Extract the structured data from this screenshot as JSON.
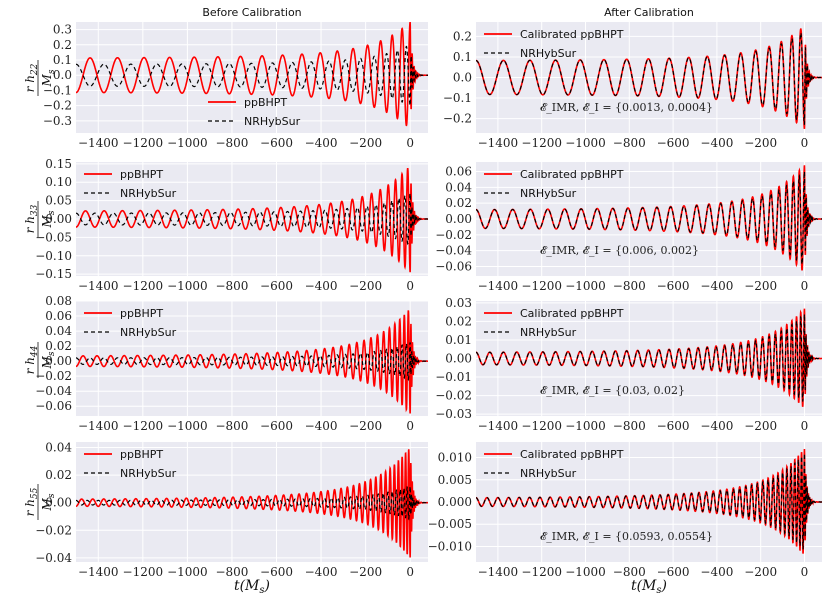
{
  "figure": {
    "column_titles": [
      "Before Calibration",
      "After Calibration"
    ],
    "xlabel": "t(M_s)"
  },
  "chart_data": [
    {
      "type": "line",
      "panel": "h22-before",
      "title": "Before Calibration",
      "ylabel": "r h_22 / M_s",
      "xlim": [
        -1500,
        80
      ],
      "ylim": [
        -0.38,
        0.35
      ],
      "xticks": [
        -1400,
        -1200,
        -1000,
        -800,
        -600,
        -400,
        -200,
        0
      ],
      "yticks": [
        -0.3,
        -0.2,
        -0.1,
        0.0,
        0.1,
        0.2,
        0.3
      ],
      "ytick_labels": [
        "−0.3",
        "−0.2",
        "−0.1",
        "0.0",
        "0.1",
        "0.2",
        "0.3"
      ],
      "grid": true,
      "legend": "lower-center",
      "series": [
        {
          "name": "ppBHPT",
          "color": "#ff0000",
          "style": "solid",
          "amplitude_start": 0.11,
          "amplitude_peak": 0.35,
          "cycles": 17.5,
          "phase": 3.14
        },
        {
          "name": "NRHybSur",
          "color": "#000000",
          "style": "dashed",
          "amplitude_start": 0.07,
          "amplitude_peak": 0.2,
          "cycles": 17.5,
          "phase": 0
        }
      ],
      "annotation": ""
    },
    {
      "type": "line",
      "panel": "h22-after",
      "title": "After Calibration",
      "xlim": [
        -1500,
        80
      ],
      "ylim": [
        -0.27,
        0.27
      ],
      "xticks": [
        -1400,
        -1200,
        -1000,
        -800,
        -600,
        -400,
        -200,
        0
      ],
      "yticks": [
        -0.2,
        -0.1,
        0.0,
        0.1,
        0.2
      ],
      "ytick_labels": [
        "−0.2",
        "−0.1",
        "0.0",
        "0.1",
        "0.2"
      ],
      "grid": true,
      "legend": "top-left",
      "series": [
        {
          "name": "Calibrated ppBHPT",
          "color": "#ff0000",
          "style": "solid",
          "amplitude_start": 0.08,
          "amplitude_peak": 0.25,
          "cycles": 17.5,
          "phase": 0
        },
        {
          "name": "NRHybSur",
          "color": "#000000",
          "style": "dashed",
          "amplitude_start": 0.08,
          "amplitude_peak": 0.23,
          "cycles": 17.5,
          "phase": 0
        }
      ],
      "annotation": "𝓔_IMR, 𝓔_I = {0.0013, 0.0004}"
    },
    {
      "type": "line",
      "panel": "h33-before",
      "ylabel": "r h_33 / M_s",
      "xlim": [
        -1500,
        80
      ],
      "ylim": [
        -0.155,
        0.155
      ],
      "xticks": [
        -1400,
        -1200,
        -1000,
        -800,
        -600,
        -400,
        -200,
        0
      ],
      "yticks": [
        -0.15,
        -0.1,
        -0.05,
        0.0,
        0.05,
        0.1,
        0.15
      ],
      "ytick_labels": [
        "−0.15",
        "−0.10",
        "−0.05",
        "0.00",
        "0.05",
        "0.10",
        "0.15"
      ],
      "grid": true,
      "legend": "top-left",
      "series": [
        {
          "name": "ppBHPT",
          "color": "#ff0000",
          "style": "solid",
          "amplitude_start": 0.02,
          "amplitude_peak": 0.145,
          "cycles": 26,
          "phase": 3.14
        },
        {
          "name": "NRHybSur",
          "color": "#000000",
          "style": "dashed",
          "amplitude_start": 0.015,
          "amplitude_peak": 0.07,
          "cycles": 26,
          "phase": 0
        }
      ],
      "annotation": ""
    },
    {
      "type": "line",
      "panel": "h33-after",
      "xlim": [
        -1500,
        80
      ],
      "ylim": [
        -0.072,
        0.072
      ],
      "xticks": [
        -1400,
        -1200,
        -1000,
        -800,
        -600,
        -400,
        -200,
        0
      ],
      "yticks": [
        -0.06,
        -0.04,
        -0.02,
        0.0,
        0.02,
        0.04,
        0.06
      ],
      "ytick_labels": [
        "−0.06",
        "−0.04",
        "−0.02",
        "0.00",
        "0.02",
        "0.04",
        "0.06"
      ],
      "grid": true,
      "legend": "top-left",
      "series": [
        {
          "name": "Calibrated ppBHPT",
          "color": "#ff0000",
          "style": "solid",
          "amplitude_start": 0.011,
          "amplitude_peak": 0.068,
          "cycles": 26,
          "phase": 0
        },
        {
          "name": "NRHybSur",
          "color": "#000000",
          "style": "dashed",
          "amplitude_start": 0.011,
          "amplitude_peak": 0.06,
          "cycles": 26,
          "phase": 0
        }
      ],
      "annotation": "𝓔_IMR, 𝓔_I = {0.006, 0.002}"
    },
    {
      "type": "line",
      "panel": "h44-before",
      "ylabel": "r h_44 / M_s",
      "xlim": [
        -1500,
        80
      ],
      "ylim": [
        -0.073,
        0.08
      ],
      "xticks": [
        -1400,
        -1200,
        -1000,
        -800,
        -600,
        -400,
        -200,
        0
      ],
      "yticks": [
        -0.06,
        -0.04,
        -0.02,
        0.0,
        0.02,
        0.04,
        0.06,
        0.08
      ],
      "ytick_labels": [
        "−0.06",
        "−0.04",
        "−0.02",
        "0.00",
        "0.02",
        "0.04",
        "0.06",
        "0.08"
      ],
      "grid": true,
      "legend": "top-left",
      "series": [
        {
          "name": "ppBHPT",
          "color": "#ff0000",
          "style": "solid",
          "amplitude_start": 0.006,
          "amplitude_peak": 0.07,
          "cycles": 35,
          "phase": 3.14
        },
        {
          "name": "NRHybSur",
          "color": "#000000",
          "style": "dashed",
          "amplitude_start": 0.004,
          "amplitude_peak": 0.025,
          "cycles": 35,
          "phase": 0
        }
      ],
      "annotation": ""
    },
    {
      "type": "line",
      "panel": "h44-after",
      "xlim": [
        -1500,
        80
      ],
      "ylim": [
        -0.031,
        0.031
      ],
      "xticks": [
        -1400,
        -1200,
        -1000,
        -800,
        -600,
        -400,
        -200,
        0
      ],
      "yticks": [
        -0.03,
        -0.02,
        -0.01,
        0.0,
        0.01,
        0.02,
        0.03
      ],
      "ytick_labels": [
        "−0.03",
        "−0.02",
        "−0.01",
        "0.00",
        "0.01",
        "0.02",
        "0.03"
      ],
      "grid": true,
      "legend": "top-left",
      "series": [
        {
          "name": "Calibrated ppBHPT",
          "color": "#ff0000",
          "style": "solid",
          "amplitude_start": 0.003,
          "amplitude_peak": 0.027,
          "cycles": 35,
          "phase": 0
        },
        {
          "name": "NRHybSur",
          "color": "#000000",
          "style": "dashed",
          "amplitude_start": 0.003,
          "amplitude_peak": 0.024,
          "cycles": 35,
          "phase": 0
        }
      ],
      "annotation": "𝓔_IMR, 𝓔_I = {0.03, 0.02}"
    },
    {
      "type": "line",
      "panel": "h55-before",
      "ylabel": "r h_55 / M_s",
      "xlim": [
        -1500,
        80
      ],
      "ylim": [
        -0.043,
        0.044
      ],
      "xticks": [
        -1400,
        -1200,
        -1000,
        -800,
        -600,
        -400,
        -200,
        0
      ],
      "yticks": [
        -0.04,
        -0.02,
        0.0,
        0.02,
        0.04
      ],
      "ytick_labels": [
        "−0.04",
        "−0.02",
        "0.00",
        "0.02",
        "0.04"
      ],
      "grid": true,
      "legend": "top-left",
      "series": [
        {
          "name": "ppBHPT",
          "color": "#ff0000",
          "style": "solid",
          "amplitude_start": 0.002,
          "amplitude_peak": 0.04,
          "cycles": 44,
          "phase": 3.14
        },
        {
          "name": "NRHybSur",
          "color": "#000000",
          "style": "dashed",
          "amplitude_start": 0.0015,
          "amplitude_peak": 0.012,
          "cycles": 44,
          "phase": 0
        }
      ],
      "annotation": ""
    },
    {
      "type": "line",
      "panel": "h55-after",
      "xlim": [
        -1500,
        80
      ],
      "ylim": [
        -0.0135,
        0.0135
      ],
      "xticks": [
        -1400,
        -1200,
        -1000,
        -800,
        -600,
        -400,
        -200,
        0
      ],
      "yticks": [
        -0.01,
        -0.005,
        0.0,
        0.005,
        0.01
      ],
      "ytick_labels": [
        "−0.010",
        "−0.005",
        "0.000",
        "0.005",
        "0.010"
      ],
      "grid": true,
      "legend": "top-left",
      "series": [
        {
          "name": "Calibrated ppBHPT",
          "color": "#ff0000",
          "style": "solid",
          "amplitude_start": 0.0008,
          "amplitude_peak": 0.012,
          "cycles": 44,
          "phase": 0
        },
        {
          "name": "NRHybSur",
          "color": "#000000",
          "style": "dashed",
          "amplitude_start": 0.0008,
          "amplitude_peak": 0.011,
          "cycles": 44,
          "phase": 0
        }
      ],
      "annotation": "𝓔_IMR, 𝓔_I = {0.0593, 0.0554}"
    }
  ]
}
